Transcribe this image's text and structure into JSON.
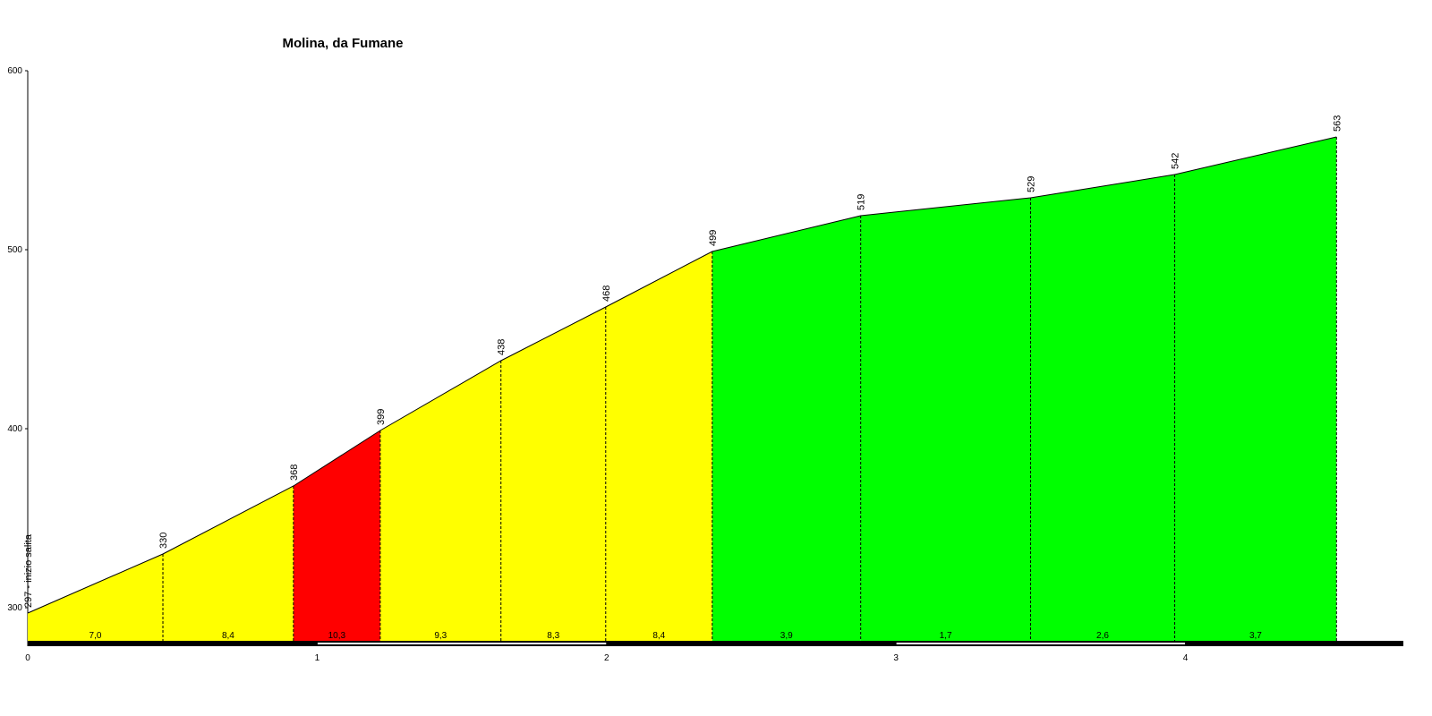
{
  "chart_data": {
    "type": "elevation-profile",
    "title": "Molina, da Fumane",
    "x": [
      0,
      0.467,
      0.918,
      1.218,
      1.635,
      1.997,
      2.365,
      2.878,
      3.465,
      3.963,
      4.522
    ],
    "values": [
      297,
      330,
      368,
      399,
      438,
      468,
      499,
      519,
      529,
      542,
      563
    ],
    "value_labels": [
      "297 - inizio salita",
      "330",
      "368",
      "399",
      "438",
      "468",
      "499",
      "519",
      "529",
      "542",
      "563"
    ],
    "segments": {
      "values": [
        7.0,
        8.4,
        10.3,
        9.3,
        8.3,
        8.4,
        3.9,
        1.7,
        2.6,
        3.7
      ],
      "value_labels": [
        "7,0",
        "8,4",
        "10,3",
        "9,3",
        "8,3",
        "8,4",
        "3,9",
        "1,7",
        "2,6",
        "3,7"
      ],
      "colors": [
        "#ffff00",
        "#ffff00",
        "#ff0000",
        "#ffff00",
        "#ffff00",
        "#ffff00",
        "#00ff00",
        "#00ff00",
        "#00ff00",
        "#00ff00"
      ]
    },
    "xlim": [
      0,
      4.753
    ],
    "ylim": [
      281,
      600
    ],
    "xticks": [
      0,
      1,
      2,
      3,
      4
    ],
    "yticks": [
      300,
      400,
      500,
      600
    ]
  }
}
